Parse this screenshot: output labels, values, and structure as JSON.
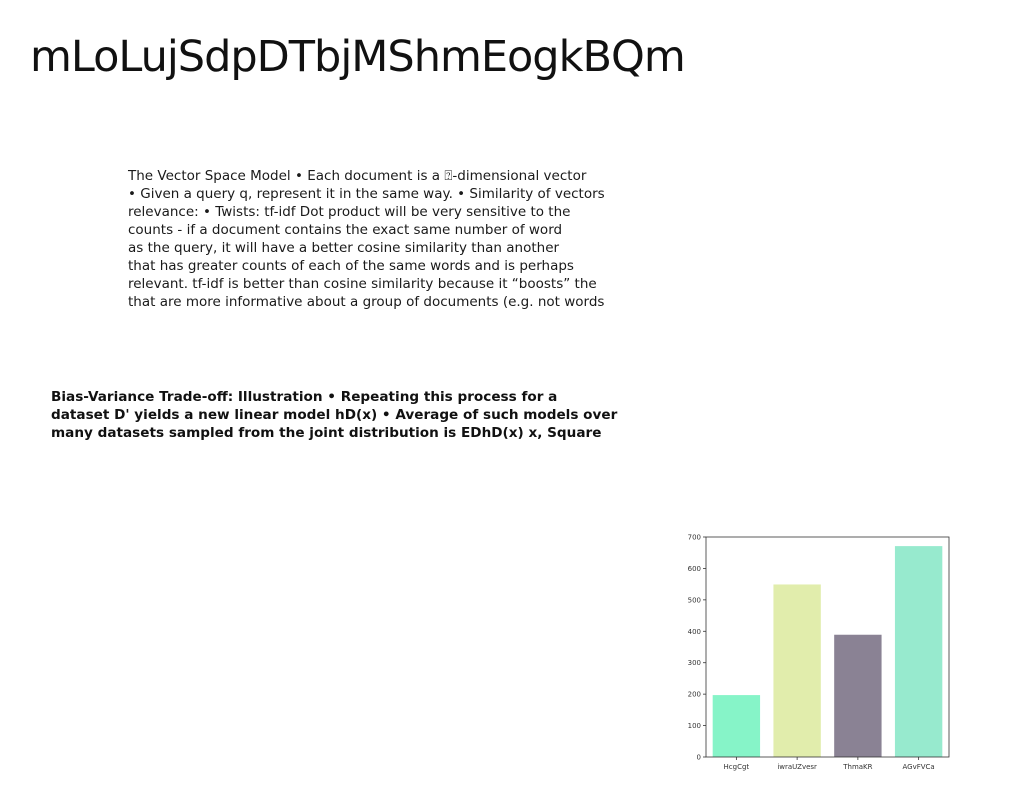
{
  "slide": {
    "title": "mLoLujSdpDTbjMShmEogkBQm",
    "paragraph_lines": [
      "The Vector Space Model • Each document is a ⍰-dimensional vector",
      "• Given a query q, represent it in the same way. • Similarity of vectors",
      "relevance: • Twists:  tf-idf Dot product will be very sensitive to the",
      "counts - if a document contains the exact same number of word",
      "as the query, it will have a better cosine similarity than another",
      "that has greater counts of each of the same words and is perhaps",
      "relevant. tf-idf is better than cosine similarity because it “boosts” the",
      "that are more informative about a group of documents (e.g. not words"
    ],
    "bold_lines": [
      "Bias-Variance Trade-off: Illustration • Repeating this process for a",
      "dataset D' yields a new linear model hD(x) • Average of such models over",
      "many datasets sampled from the joint distribution is EDhD(x) x, Square"
    ]
  },
  "chart_data": {
    "type": "bar",
    "categories": [
      "HcgCgt",
      "iwraUZvesr",
      "ThmaKR",
      "AGvFVCa"
    ],
    "values": [
      197,
      549,
      389,
      671
    ],
    "colors": [
      "#86f4c8",
      "#e1edac",
      "#8a8294",
      "#97eace"
    ],
    "ylim": [
      0,
      700
    ],
    "yticks": [
      0,
      100,
      200,
      300,
      400,
      500,
      600,
      700
    ],
    "title": "",
    "xlabel": "",
    "ylabel": "",
    "grid": false
  }
}
